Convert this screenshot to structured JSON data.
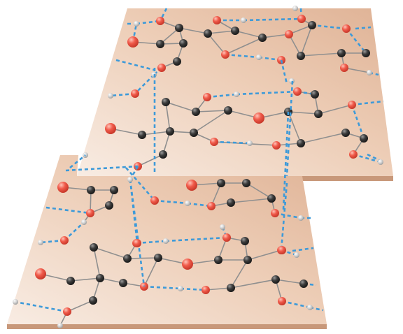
{
  "diagram": {
    "kind": "two stacked molecular layers with hydrogen bonds",
    "colors": {
      "sheet_light": "#f7e9df",
      "sheet_dark": "#e2b79a",
      "sheet_edge": "#c99a78",
      "carbon": "#3a3a3a",
      "oxygen": "#f05a4a",
      "hydrogen": "#c9c9c9",
      "covalent_bond": "#8e8e8e",
      "hydrogen_bond": "#3d9ad9"
    },
    "legend": []
  }
}
